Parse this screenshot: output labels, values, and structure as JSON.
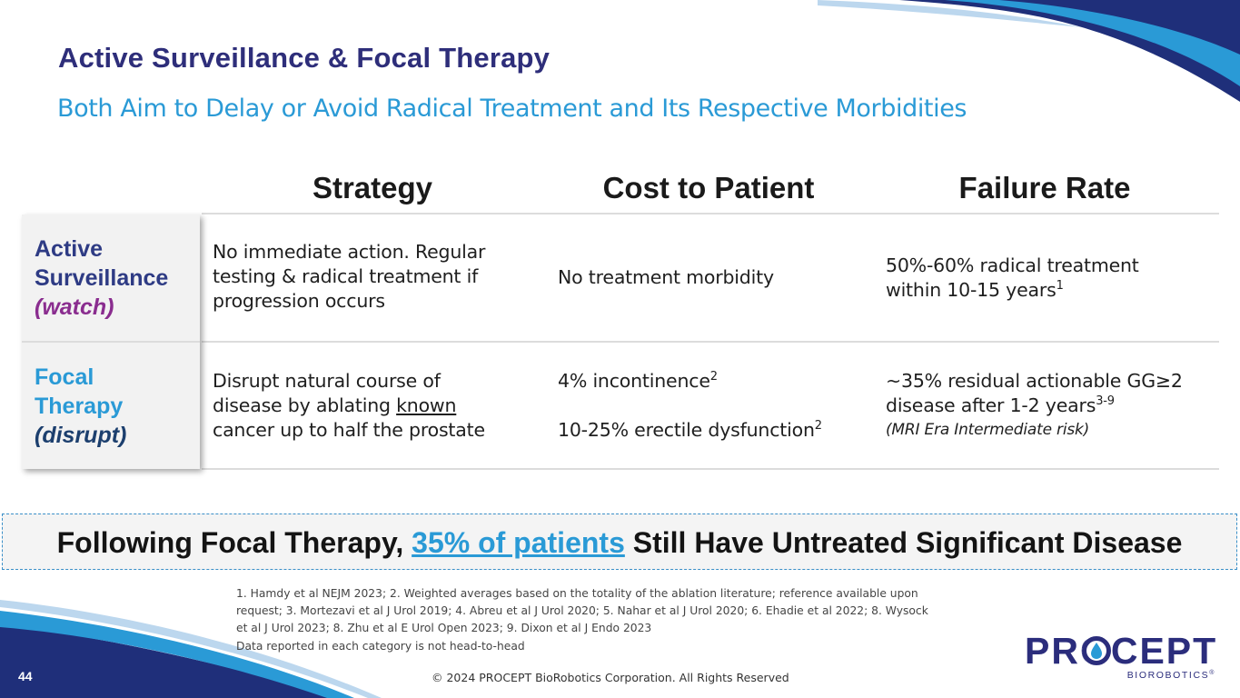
{
  "slide": {
    "title": "Active Surveillance & Focal Therapy",
    "subtitle": "Both Aim to Delay or Avoid Radical Treatment and Its Respective Morbidities",
    "page_number": "44",
    "copyright": "© 2024 PROCEPT BioRobotics Corporation. All Rights Reserved"
  },
  "colors": {
    "title": "#2e2e7a",
    "subtitle": "#2a9ad6",
    "active_label": "#2e3b84",
    "active_label_italic": "#8a2d8f",
    "focal_label": "#2a9ad6",
    "focal_label_italic": "#1c3f6e",
    "brand_navy": "#1f2f7a",
    "brand_blue": "#2a9ad6"
  },
  "table": {
    "headers": [
      "Strategy",
      "Cost to Patient",
      "Failure Rate"
    ],
    "rows": [
      {
        "label_line1": "Active",
        "label_line2": "Surveillance",
        "label_italic": "(watch)",
        "strategy_lines": [
          "No immediate action. Regular",
          "testing & radical treatment if",
          "progression occurs"
        ],
        "cost_line1": "No treatment morbidity",
        "failure_line1": "50%-60% radical treatment",
        "failure_line2": "within 10-15 years",
        "failure_line2_sup": "1"
      },
      {
        "label_line1": "Focal",
        "label_line2": "Therapy",
        "label_italic": "(disrupt)",
        "strategy_line1": "Disrupt natural course of",
        "strategy_line2_pre": "disease by ablating ",
        "strategy_line2_underlined": "known",
        "strategy_line3": "cancer up to half the prostate",
        "cost_line1": "4% incontinence",
        "cost_line1_sup": "2",
        "cost_line2": "10-25% erectile dysfunction",
        "cost_line2_sup": "2",
        "failure_line1": "~35% residual actionable GG≥2",
        "failure_line2": "disease after 1-2 years",
        "failure_line2_sup": "3-9",
        "failure_note": "(MRI Era Intermediate risk)"
      }
    ]
  },
  "banner": {
    "pre": "Following Focal Therapy, ",
    "highlight": "35% of patients",
    "post": " Still Have Untreated Significant Disease"
  },
  "references": {
    "lines": [
      "1. Hamdy et al NEJM 2023; 2. Weighted averages based on the totality of the ablation literature; reference available upon",
      "request; 3. Mortezavi et al  J Urol 2019; 4. Abreu et al J Urol 2020; 5. Nahar et al J Urol 2020; 6. Ehadie et al 2022; 8. Wysock",
      "et al J Urol 2023; 8. Zhu et al E Urol Open 2023; 9. Dixon et al J Endo 2023"
    ],
    "disclaimer": "Data reported in each category is not head-to-head"
  },
  "logo": {
    "word": "PROCEPT",
    "sub": "BIOROBOTICS",
    "mark": "®"
  }
}
